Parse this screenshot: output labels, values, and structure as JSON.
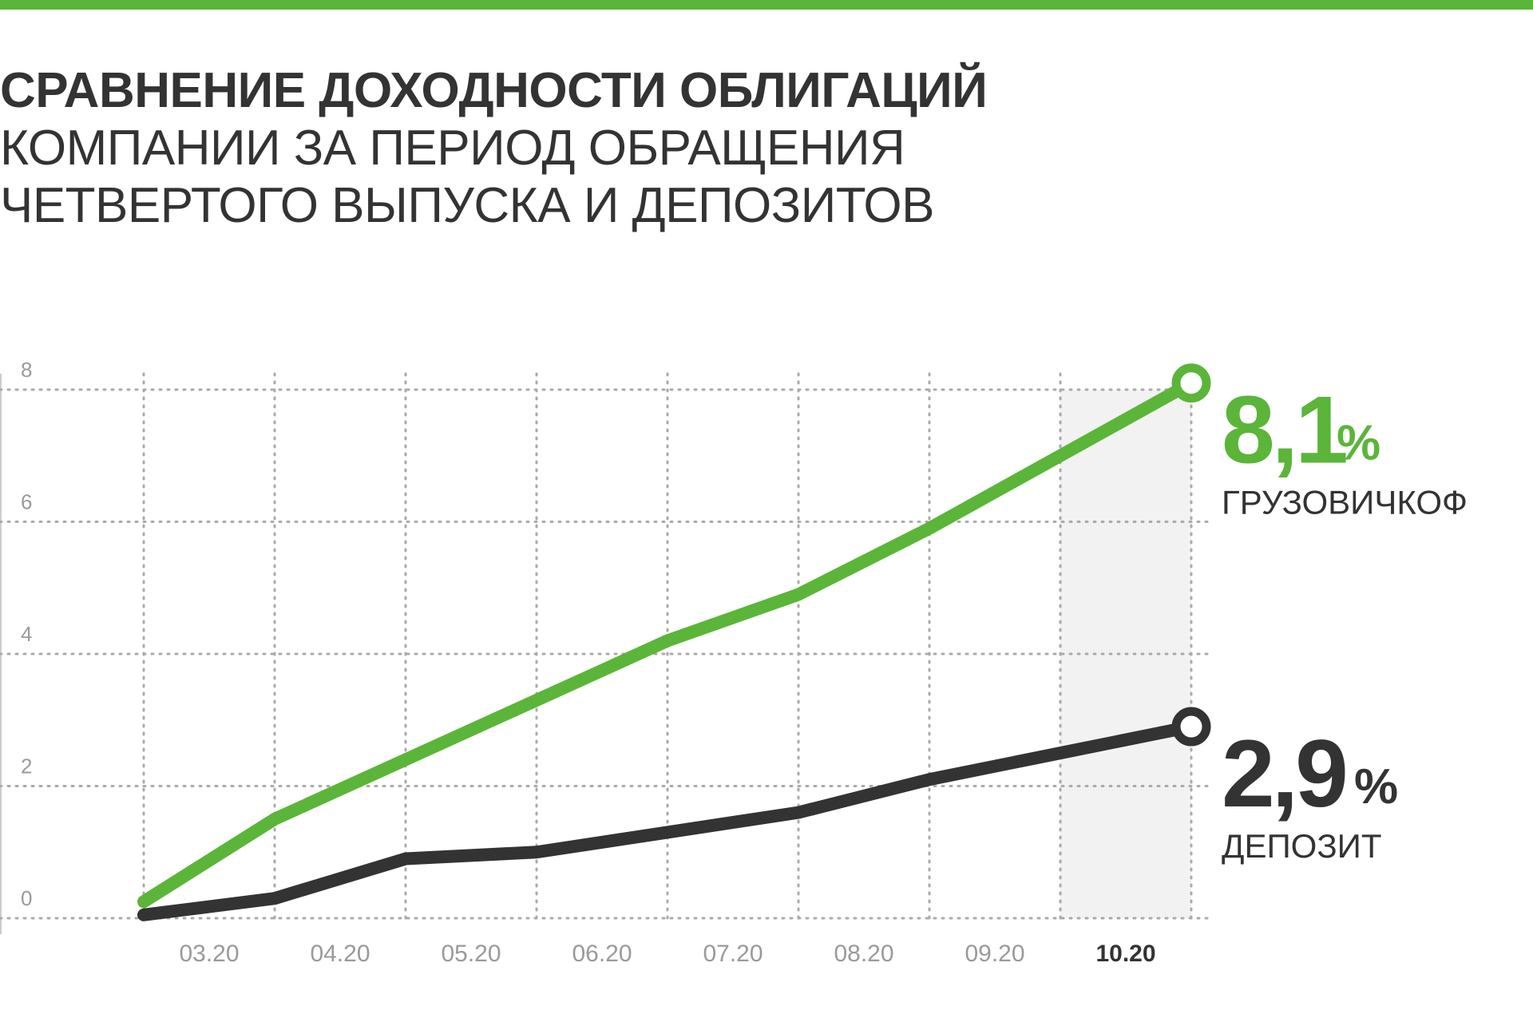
{
  "title": {
    "bold": "СРАВНЕНИЕ ДОХОДНОСТИ ОБЛИГАЦИЙ",
    "line2": "КОМПАНИИ ЗА ПЕРИОД ОБРАЩЕНИЯ",
    "line3": "ЧЕТВЕРТОГО ВЫПУСКА И ДЕПОЗИТОВ"
  },
  "colors": {
    "accent": "#5bb539",
    "dark": "#333333",
    "grid": "#aaaaaa",
    "tick": "#9a9a9a",
    "highlight": "#f2f2f2"
  },
  "chart_data": {
    "type": "line",
    "categories": [
      "",
      "03.20",
      "04.20",
      "05.20",
      "06.20",
      "07.20",
      "08.20",
      "09.20",
      "10.20"
    ],
    "highlight_category": "10.20",
    "ylim": [
      0,
      8
    ],
    "yticks": [
      "0",
      "2",
      "4",
      "6",
      "8"
    ],
    "grid": true,
    "series": [
      {
        "name": "ГРУЗОВИЧКОФ",
        "values": [
          0.25,
          1.5,
          2.4,
          3.3,
          4.2,
          4.9,
          5.9,
          7.0,
          8.1
        ],
        "callout_value": "8,1",
        "callout_unit": "%"
      },
      {
        "name": "ДЕПОЗИТ",
        "values": [
          0.05,
          0.3,
          0.9,
          1.0,
          1.3,
          1.6,
          2.1,
          2.5,
          2.9
        ],
        "callout_value": "2,9",
        "callout_unit": "%"
      }
    ]
  }
}
